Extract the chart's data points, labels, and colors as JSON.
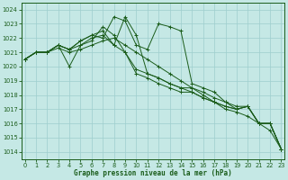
{
  "xlabel": "Graphe pression niveau de la mer (hPa)",
  "ylim": [
    1013.5,
    1024.5
  ],
  "xlim": [
    -0.3,
    23.3
  ],
  "yticks": [
    1014,
    1015,
    1016,
    1017,
    1018,
    1019,
    1020,
    1021,
    1022,
    1023,
    1024
  ],
  "xticks": [
    0,
    1,
    2,
    3,
    4,
    5,
    6,
    7,
    8,
    9,
    10,
    11,
    12,
    13,
    14,
    15,
    16,
    17,
    18,
    19,
    20,
    21,
    22,
    23
  ],
  "background_color": "#c5e8e5",
  "grid_color": "#9ecece",
  "line_color": "#1a5c1a",
  "series": [
    [
      1020.5,
      1021.0,
      1021.0,
      1021.5,
      1021.2,
      1021.8,
      1022.2,
      1022.0,
      1023.5,
      1023.2,
      1021.5,
      1021.2,
      1023.0,
      1022.8,
      1022.5,
      1018.8,
      1018.5,
      1018.2,
      1017.5,
      1017.0,
      1017.2,
      1016.0,
      1016.0,
      1014.2
    ],
    [
      1020.5,
      1021.0,
      1021.0,
      1021.5,
      1021.2,
      1021.8,
      1022.2,
      1022.5,
      1021.5,
      1023.5,
      1022.2,
      1019.5,
      1019.2,
      1018.8,
      1018.5,
      1018.5,
      1018.2,
      1017.8,
      1017.5,
      1017.2,
      1017.2,
      1016.0,
      1016.0,
      1014.2
    ],
    [
      1020.5,
      1021.0,
      1021.0,
      1021.5,
      1020.0,
      1021.5,
      1022.0,
      1022.2,
      1021.5,
      1021.0,
      1019.5,
      1019.2,
      1018.8,
      1018.5,
      1018.2,
      1018.2,
      1017.8,
      1017.5,
      1017.2,
      1017.0,
      1017.2,
      1016.0,
      1016.0,
      1014.2
    ],
    [
      1020.5,
      1021.0,
      1021.0,
      1021.5,
      1021.2,
      1021.5,
      1021.8,
      1022.8,
      1022.2,
      1021.0,
      1019.8,
      1019.5,
      1019.2,
      1018.8,
      1018.5,
      1018.2,
      1017.8,
      1017.5,
      1017.2,
      1017.0,
      1017.2,
      1016.0,
      1016.0,
      1014.2
    ],
    [
      1020.5,
      1021.0,
      1021.0,
      1021.3,
      1021.0,
      1021.2,
      1021.5,
      1021.8,
      1022.0,
      1021.5,
      1021.0,
      1020.5,
      1020.0,
      1019.5,
      1019.0,
      1018.5,
      1018.0,
      1017.5,
      1017.0,
      1016.8,
      1016.5,
      1016.0,
      1015.5,
      1014.2
    ]
  ]
}
